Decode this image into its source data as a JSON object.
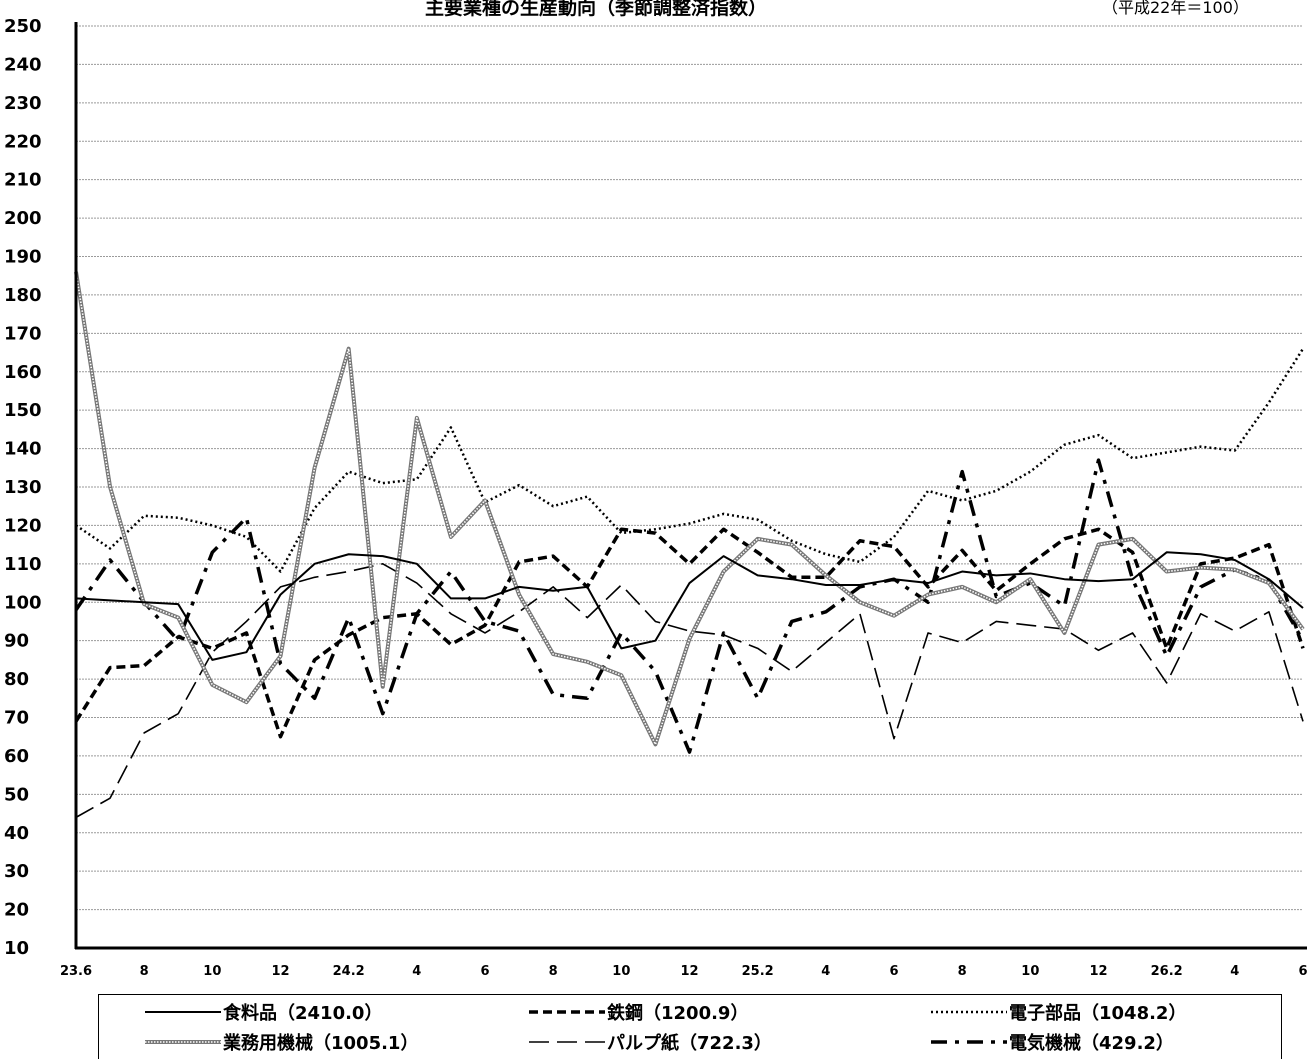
{
  "chart_data": {
    "type": "line",
    "title": "主要業種の生産動向（季節調整済指数）",
    "units_note": "（平成22年＝100）",
    "ylim": [
      10,
      250
    ],
    "yticks": [
      10,
      20,
      30,
      40,
      50,
      60,
      70,
      80,
      90,
      100,
      110,
      120,
      130,
      140,
      150,
      160,
      170,
      180,
      190,
      200,
      210,
      220,
      230,
      240,
      250
    ],
    "x_tick_labels": [
      "23.6",
      "8",
      "10",
      "12",
      "24.2",
      "4",
      "6",
      "8",
      "10",
      "12",
      "25.2",
      "4",
      "6",
      "8",
      "10",
      "12",
      "26.2",
      "4",
      "6"
    ],
    "x_tick_index": [
      0,
      2,
      4,
      6,
      8,
      10,
      12,
      14,
      16,
      18,
      20,
      22,
      24,
      26,
      28,
      30,
      32,
      34,
      36
    ],
    "grid": true,
    "legend_position": "bottom",
    "series": [
      {
        "name": "食料品（2410.0）",
        "style": "solid",
        "color": "#000000",
        "values": [
          101,
          100.5,
          100,
          99.5,
          85,
          87,
          102,
          110,
          112.5,
          112,
          110,
          101,
          101,
          104,
          103,
          104,
          88,
          90,
          105,
          112,
          107,
          106,
          104.5,
          104.5,
          106,
          105,
          108,
          107,
          107.5,
          106,
          105.5,
          106,
          113,
          112.5,
          111,
          106,
          98.5
        ]
      },
      {
        "name": "鉄鋼（1200.9）",
        "style": "dash",
        "color": "#000000",
        "values": [
          69,
          83,
          83.5,
          91,
          88,
          92,
          65,
          85,
          91.5,
          96,
          97,
          89,
          94,
          110.5,
          112,
          104,
          119,
          118,
          110,
          119,
          113,
          106.5,
          106.5,
          116,
          114.5,
          104,
          113.5,
          103,
          110,
          116.5,
          119,
          113,
          88,
          110,
          111.5,
          115,
          88
        ]
      },
      {
        "name": "電子部品（1048.2）",
        "style": "dot",
        "color": "#000000",
        "values": [
          120,
          114,
          122.5,
          122,
          120,
          117,
          108,
          124.5,
          134,
          131,
          132,
          145.5,
          126,
          130.5,
          125,
          127.5,
          118,
          119,
          120.5,
          123,
          121.5,
          116,
          112.5,
          110.5,
          117,
          129,
          126.5,
          129,
          134,
          141,
          143.5,
          137.5,
          139,
          140.5,
          139.5,
          152,
          166
        ]
      },
      {
        "name": "業務用機械（1005.1）",
        "style": "lace",
        "color": "#888888",
        "values": [
          186,
          130,
          99.5,
          96,
          78.5,
          74,
          86,
          135,
          166,
          78,
          148,
          117,
          126.5,
          102,
          86.5,
          84.5,
          81,
          63,
          90.5,
          108,
          116.5,
          115,
          107,
          100,
          96.5,
          102,
          104,
          100,
          106,
          92,
          115,
          116.5,
          108,
          109,
          108.5,
          105,
          93
        ]
      },
      {
        "name": "パルプ紙（722.3）",
        "style": "longdash",
        "color": "#000000",
        "values": [
          44,
          49,
          66,
          71,
          87,
          95,
          104,
          106.5,
          108,
          110,
          105,
          97,
          92,
          97.5,
          104,
          96,
          104.5,
          95,
          92.5,
          91.5,
          88,
          82,
          89.5,
          97,
          64.5,
          92,
          89.5,
          95,
          94,
          93,
          87.5,
          92,
          79,
          97,
          92.5,
          97.5,
          69
        ]
      },
      {
        "name": "電気機械（429.2）",
        "style": "dashdot",
        "color": "#000000",
        "values": [
          98,
          111,
          100,
          90,
          113,
          122,
          84,
          75,
          96,
          71,
          97,
          108,
          95,
          92.5,
          76,
          75,
          92,
          82,
          61,
          92,
          75,
          95,
          97.5,
          104,
          106,
          100,
          134,
          101.5,
          105,
          99,
          137,
          106,
          86,
          104,
          108.5,
          105.5,
          90
        ]
      }
    ]
  }
}
